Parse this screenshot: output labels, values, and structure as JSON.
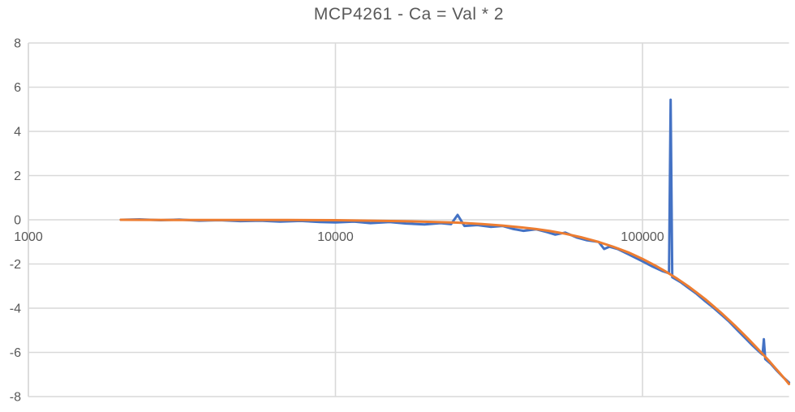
{
  "chart_data": {
    "type": "line",
    "title": "MCP4261 - Ca = Val * 2",
    "xlabel": "",
    "ylabel": "",
    "x_scale": "log",
    "xlim": [
      1000,
      300000
    ],
    "ylim": [
      -8,
      8
    ],
    "x_ticks": [
      1000,
      10000,
      100000
    ],
    "x_tick_labels": [
      "1000",
      "10000",
      "100000"
    ],
    "y_ticks": [
      8,
      6,
      4,
      2,
      0,
      -2,
      -4,
      -6,
      -8
    ],
    "y_tick_labels": [
      "8",
      "6",
      "4",
      "2",
      "0",
      "-2",
      "-4",
      "-6",
      "-8"
    ],
    "grid": true,
    "legend_position": "none",
    "colors": {
      "gridline": "#D9D9D9",
      "axis_line": "#D9D9D9",
      "tick_label": "#595959",
      "title": "#595959",
      "background": "#ffffff"
    },
    "series": [
      {
        "name": "blue-trace",
        "color": "#4472C4",
        "stroke_width": 3,
        "points": [
          [
            2000,
            0.0
          ],
          [
            2300,
            0.02
          ],
          [
            2700,
            -0.02
          ],
          [
            3100,
            0.01
          ],
          [
            3600,
            -0.04
          ],
          [
            4200,
            -0.02
          ],
          [
            4900,
            -0.06
          ],
          [
            5700,
            -0.04
          ],
          [
            6600,
            -0.08
          ],
          [
            7700,
            -0.05
          ],
          [
            8900,
            -0.1
          ],
          [
            10000,
            -0.12
          ],
          [
            11500,
            -0.08
          ],
          [
            13000,
            -0.15
          ],
          [
            15000,
            -0.1
          ],
          [
            17000,
            -0.17
          ],
          [
            19500,
            -0.21
          ],
          [
            22000,
            -0.15
          ],
          [
            23800,
            -0.2
          ],
          [
            25000,
            0.22
          ],
          [
            26300,
            -0.28
          ],
          [
            29000,
            -0.24
          ],
          [
            32000,
            -0.32
          ],
          [
            35000,
            -0.28
          ],
          [
            38000,
            -0.42
          ],
          [
            41000,
            -0.5
          ],
          [
            45000,
            -0.43
          ],
          [
            49000,
            -0.56
          ],
          [
            52000,
            -0.67
          ],
          [
            56000,
            -0.58
          ],
          [
            61000,
            -0.8
          ],
          [
            66000,
            -0.93
          ],
          [
            72000,
            -1.0
          ],
          [
            75000,
            -1.32
          ],
          [
            78000,
            -1.22
          ],
          [
            83000,
            -1.32
          ],
          [
            90000,
            -1.56
          ],
          [
            100000,
            -1.88
          ],
          [
            108000,
            -2.12
          ],
          [
            116000,
            -2.32
          ],
          [
            122000,
            -2.42
          ],
          [
            123500,
            5.43
          ],
          [
            125000,
            -2.6
          ],
          [
            133000,
            -2.82
          ],
          [
            141000,
            -3.08
          ],
          [
            150000,
            -3.35
          ],
          [
            160000,
            -3.68
          ],
          [
            170000,
            -3.97
          ],
          [
            181000,
            -4.3
          ],
          [
            192000,
            -4.62
          ],
          [
            203000,
            -4.97
          ],
          [
            215000,
            -5.32
          ],
          [
            228000,
            -5.68
          ],
          [
            240000,
            -5.97
          ],
          [
            246000,
            -6.1
          ],
          [
            248500,
            -5.4
          ],
          [
            251000,
            -6.3
          ],
          [
            262000,
            -6.52
          ],
          [
            274000,
            -6.83
          ],
          [
            287000,
            -7.12
          ],
          [
            300000,
            -7.36
          ]
        ]
      },
      {
        "name": "orange-curve",
        "color": "#ED7D31",
        "stroke_width": 3,
        "points": [
          [
            2000,
            0.0
          ],
          [
            3000,
            -0.01
          ],
          [
            4000,
            -0.01
          ],
          [
            5000,
            -0.01
          ],
          [
            7000,
            -0.01
          ],
          [
            10000,
            -0.02
          ],
          [
            13000,
            -0.04
          ],
          [
            16000,
            -0.06
          ],
          [
            20000,
            -0.09
          ],
          [
            25000,
            -0.13
          ],
          [
            30000,
            -0.19
          ],
          [
            35000,
            -0.26
          ],
          [
            40000,
            -0.34
          ],
          [
            45000,
            -0.42
          ],
          [
            50000,
            -0.51
          ],
          [
            56000,
            -0.63
          ],
          [
            63000,
            -0.79
          ],
          [
            71000,
            -0.98
          ],
          [
            80000,
            -1.21
          ],
          [
            90000,
            -1.48
          ],
          [
            100000,
            -1.77
          ],
          [
            110000,
            -2.07
          ],
          [
            120000,
            -2.37
          ],
          [
            130000,
            -2.67
          ],
          [
            141000,
            -3.01
          ],
          [
            150000,
            -3.29
          ],
          [
            160000,
            -3.59
          ],
          [
            170000,
            -3.9
          ],
          [
            180000,
            -4.2
          ],
          [
            190000,
            -4.5
          ],
          [
            200000,
            -4.79
          ],
          [
            210000,
            -5.08
          ],
          [
            220000,
            -5.36
          ],
          [
            230000,
            -5.64
          ],
          [
            240000,
            -5.91
          ],
          [
            250000,
            -6.17
          ],
          [
            260000,
            -6.43
          ],
          [
            270000,
            -6.69
          ],
          [
            280000,
            -6.94
          ],
          [
            290000,
            -7.18
          ],
          [
            300000,
            -7.43
          ]
        ]
      }
    ]
  }
}
